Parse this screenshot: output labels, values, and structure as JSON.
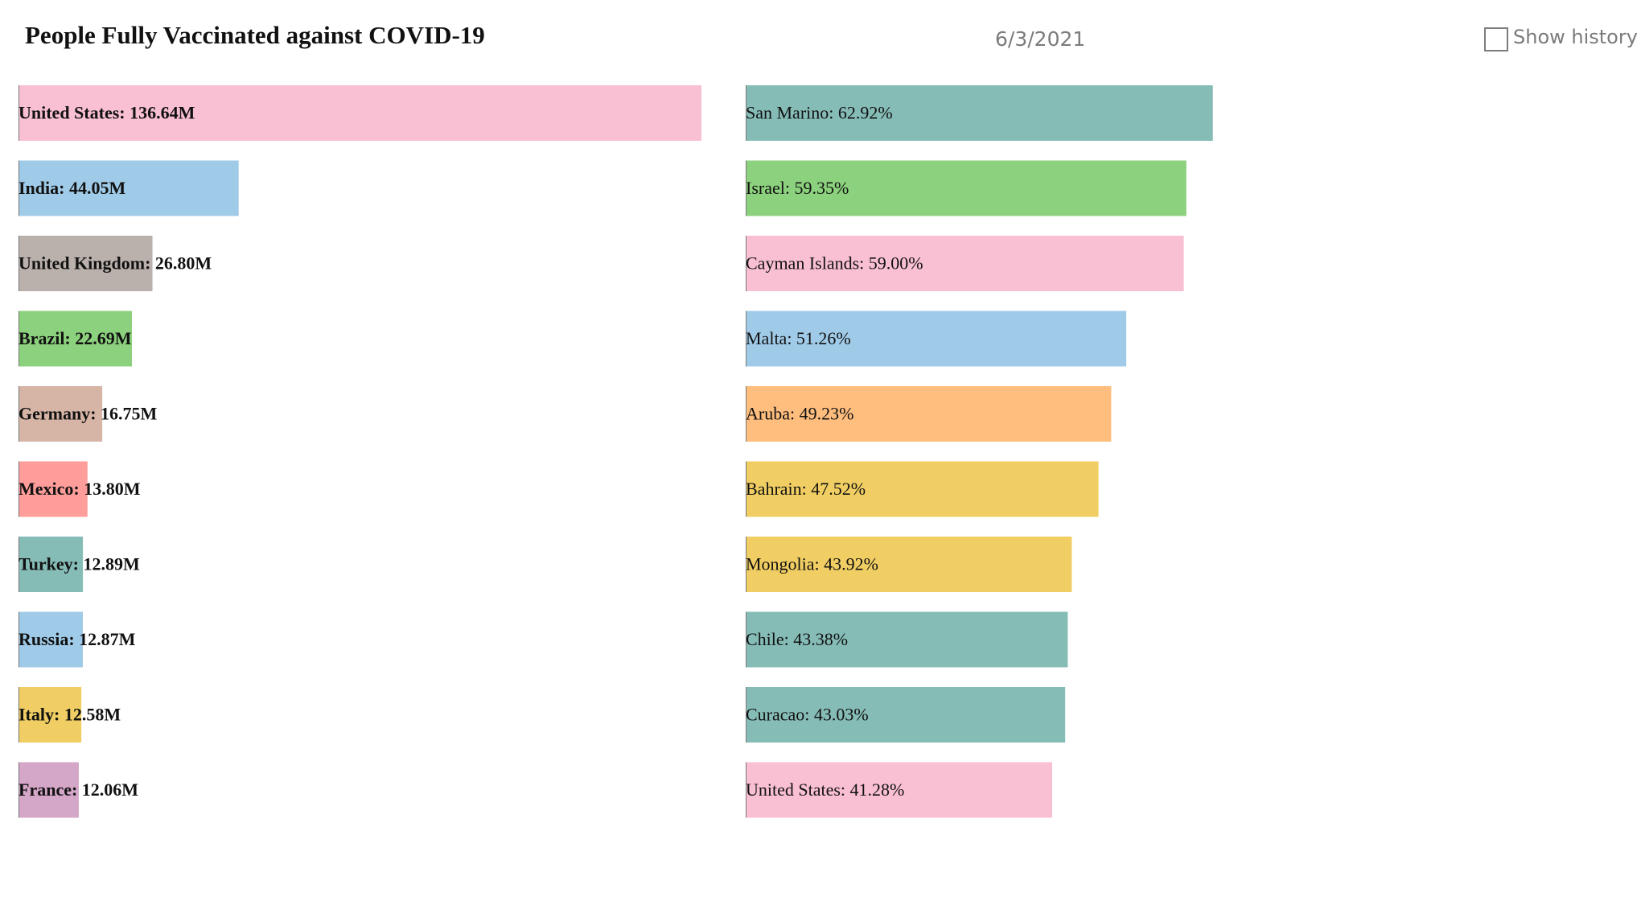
{
  "title": "People Fully Vaccinated against COVID-19",
  "date": "6/3/2021",
  "show_history": {
    "label": "Show history",
    "checked": false
  },
  "chart_data": [
    {
      "type": "bar",
      "orientation": "horizontal",
      "units": "millions",
      "xlim": [
        0,
        136.64
      ],
      "categories": [
        "United States",
        "India",
        "United Kingdom",
        "Brazil",
        "Germany",
        "Mexico",
        "Turkey",
        "Russia",
        "Italy",
        "France"
      ],
      "values": [
        136.64,
        44.05,
        26.8,
        22.69,
        16.75,
        13.8,
        12.89,
        12.87,
        12.58,
        12.06
      ],
      "labels": [
        "United States: 136.64M",
        "India: 44.05M",
        "United Kingdom: 26.80M",
        "Brazil: 22.69M",
        "Germany: 16.75M",
        "Mexico: 13.80M",
        "Turkey: 12.89M",
        "Russia: 12.87M",
        "Italy: 12.58M",
        "France: 12.06M"
      ],
      "colors": [
        "#f9bfd3",
        "#a0cbe8",
        "#bab0ac",
        "#8cd17d",
        "#d7b5a6",
        "#ff9d9a",
        "#86bcb6",
        "#a0cbe8",
        "#f1ce63",
        "#d4a6c8"
      ]
    },
    {
      "type": "bar",
      "orientation": "horizontal",
      "units": "percent",
      "xlim": [
        0,
        100
      ],
      "categories": [
        "San Marino",
        "Israel",
        "Cayman Islands",
        "Malta",
        "Aruba",
        "Bahrain",
        "Mongolia",
        "Chile",
        "Curacao",
        "United States"
      ],
      "values": [
        62.92,
        59.35,
        59.0,
        51.26,
        49.23,
        47.52,
        43.92,
        43.38,
        43.03,
        41.28
      ],
      "labels": [
        "San Marino: 62.92%",
        "Israel: 59.35%",
        "Cayman Islands: 59.00%",
        "Malta: 51.26%",
        "Aruba: 49.23%",
        "Bahrain: 47.52%",
        "Mongolia: 43.92%",
        "Chile: 43.38%",
        "Curacao: 43.03%",
        "United States: 41.28%"
      ],
      "colors": [
        "#86bcb6",
        "#8cd17d",
        "#f9bfd3",
        "#a0cbe8",
        "#ffbe7d",
        "#f1ce63",
        "#f1ce63",
        "#86bcb6",
        "#86bcb6",
        "#f9bfd3"
      ]
    }
  ]
}
